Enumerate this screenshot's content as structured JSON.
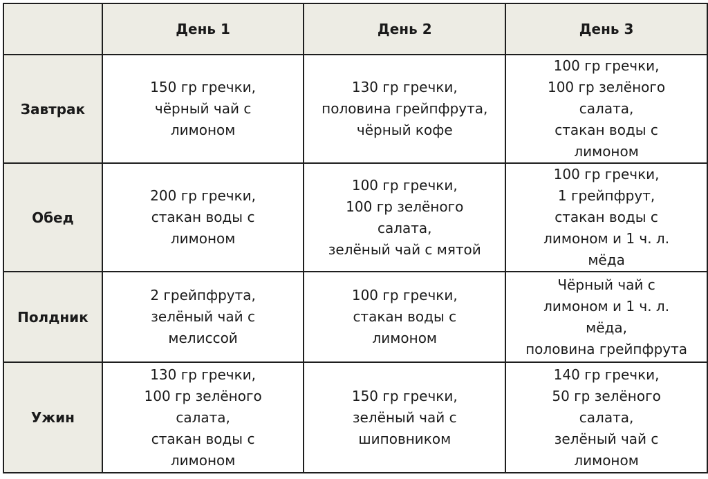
{
  "colors": {
    "header_bg": "#edece4",
    "border": "#1e1e1e",
    "text": "#1a1a1a"
  },
  "columns": [
    "",
    "День 1",
    "День 2",
    "День 3"
  ],
  "rows": [
    {
      "meal": "Завтрак",
      "days": [
        [
          "150 гр гречки,",
          "чёрный чай с",
          "лимоном"
        ],
        [
          "130 гр гречки,",
          "половина грейпфрута,",
          "чёрный кофе"
        ],
        [
          "100 гр гречки,",
          "100 гр зелёного",
          "салата,",
          "стакан воды с",
          "лимоном"
        ]
      ]
    },
    {
      "meal": "Обед",
      "days": [
        [
          "200 гр гречки,",
          "стакан воды с",
          "лимоном"
        ],
        [
          "100 гр гречки,",
          "100 гр зелёного",
          "салата,",
          "зелёный чай с мятой"
        ],
        [
          "100 гр гречки,",
          "1 грейпфрут,",
          "стакан воды с",
          "лимоном и 1 ч. л.",
          "мёда"
        ]
      ]
    },
    {
      "meal": "Полдник",
      "days": [
        [
          "2 грейпфрута,",
          "зелёный чай с",
          "мелиссой"
        ],
        [
          "100 гр гречки,",
          "стакан воды с",
          "лимоном"
        ],
        [
          "Чёрный чай с",
          "лимоном и 1 ч. л.",
          "мёда,",
          "половина грейпфрута"
        ]
      ]
    },
    {
      "meal": "Ужин",
      "days": [
        [
          "130 гр гречки,",
          "100 гр зелёного",
          "салата,",
          "стакан воды с",
          "лимоном"
        ],
        [
          "150 гр гречки,",
          "зелёный чай с",
          "шиповником"
        ],
        [
          "140 гр гречки,",
          "50 гр зелёного",
          "салата,",
          "зелёный чай с",
          "лимоном"
        ]
      ]
    }
  ]
}
